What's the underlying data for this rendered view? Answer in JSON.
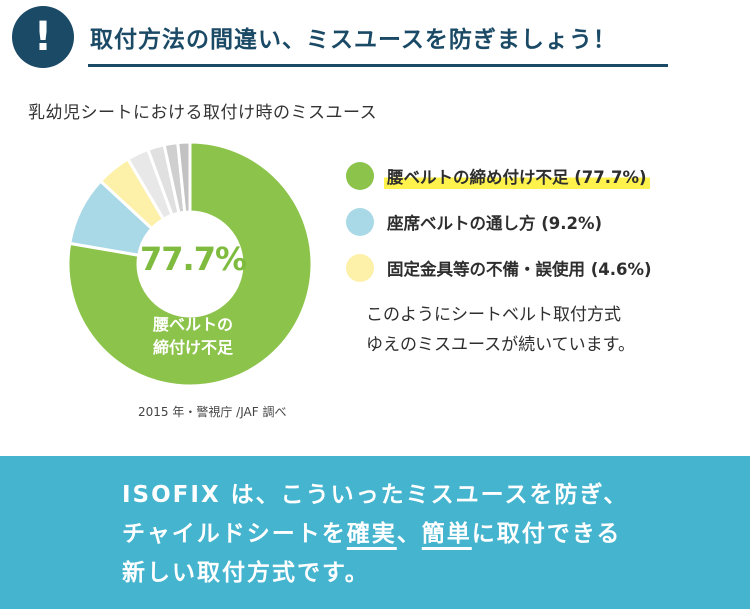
{
  "header": {
    "icon": "exclamation-icon",
    "icon_glyph": "!",
    "title": "取付方法の間違い、ミスユースを防ぎましょう！"
  },
  "chart_data": {
    "type": "pie",
    "title": "乳幼児シートにおける取付け時のミスユース",
    "center_value": "77.7%",
    "center_label_lines": [
      "腰ベルトの",
      "締付け不足"
    ],
    "source": "2015 年・警視庁 /JAF 調べ",
    "series": [
      {
        "name": "腰ベルトの締め付け不足 (77.7%)",
        "value": 77.7,
        "color": "#8cc34a"
      },
      {
        "name": "座席ベルトの通し方 (9.2%)",
        "value": 9.2,
        "color": "#a9d9e6"
      },
      {
        "name": "固定金具等の不備・誤使用 (4.6%)",
        "value": 4.6,
        "color": "#fdf0a8"
      },
      {
        "name": "",
        "value": 2.9,
        "color": "#e8e8e8"
      },
      {
        "name": "",
        "value": 2.2,
        "color": "#e0e0e0"
      },
      {
        "name": "",
        "value": 1.8,
        "color": "#cfcfcf"
      },
      {
        "name": "",
        "value": 1.6,
        "color": "#c2c2c2"
      }
    ],
    "legend_position": "right"
  },
  "note": {
    "lines": [
      "このようにシートベルト取付方式",
      "ゆえのミスユースが続いています。"
    ]
  },
  "banner": {
    "line1": "ISOFIX は、こういったミスユースを防ぎ、",
    "line2_prefix": "チャイルドシートを",
    "line2_emph1": "確実",
    "line2_sep": "、",
    "line2_emph2": "簡単",
    "line2_suffix": "に取付できる",
    "line3": "新しい取付方式です。",
    "bg_color": "#44b4cf"
  }
}
